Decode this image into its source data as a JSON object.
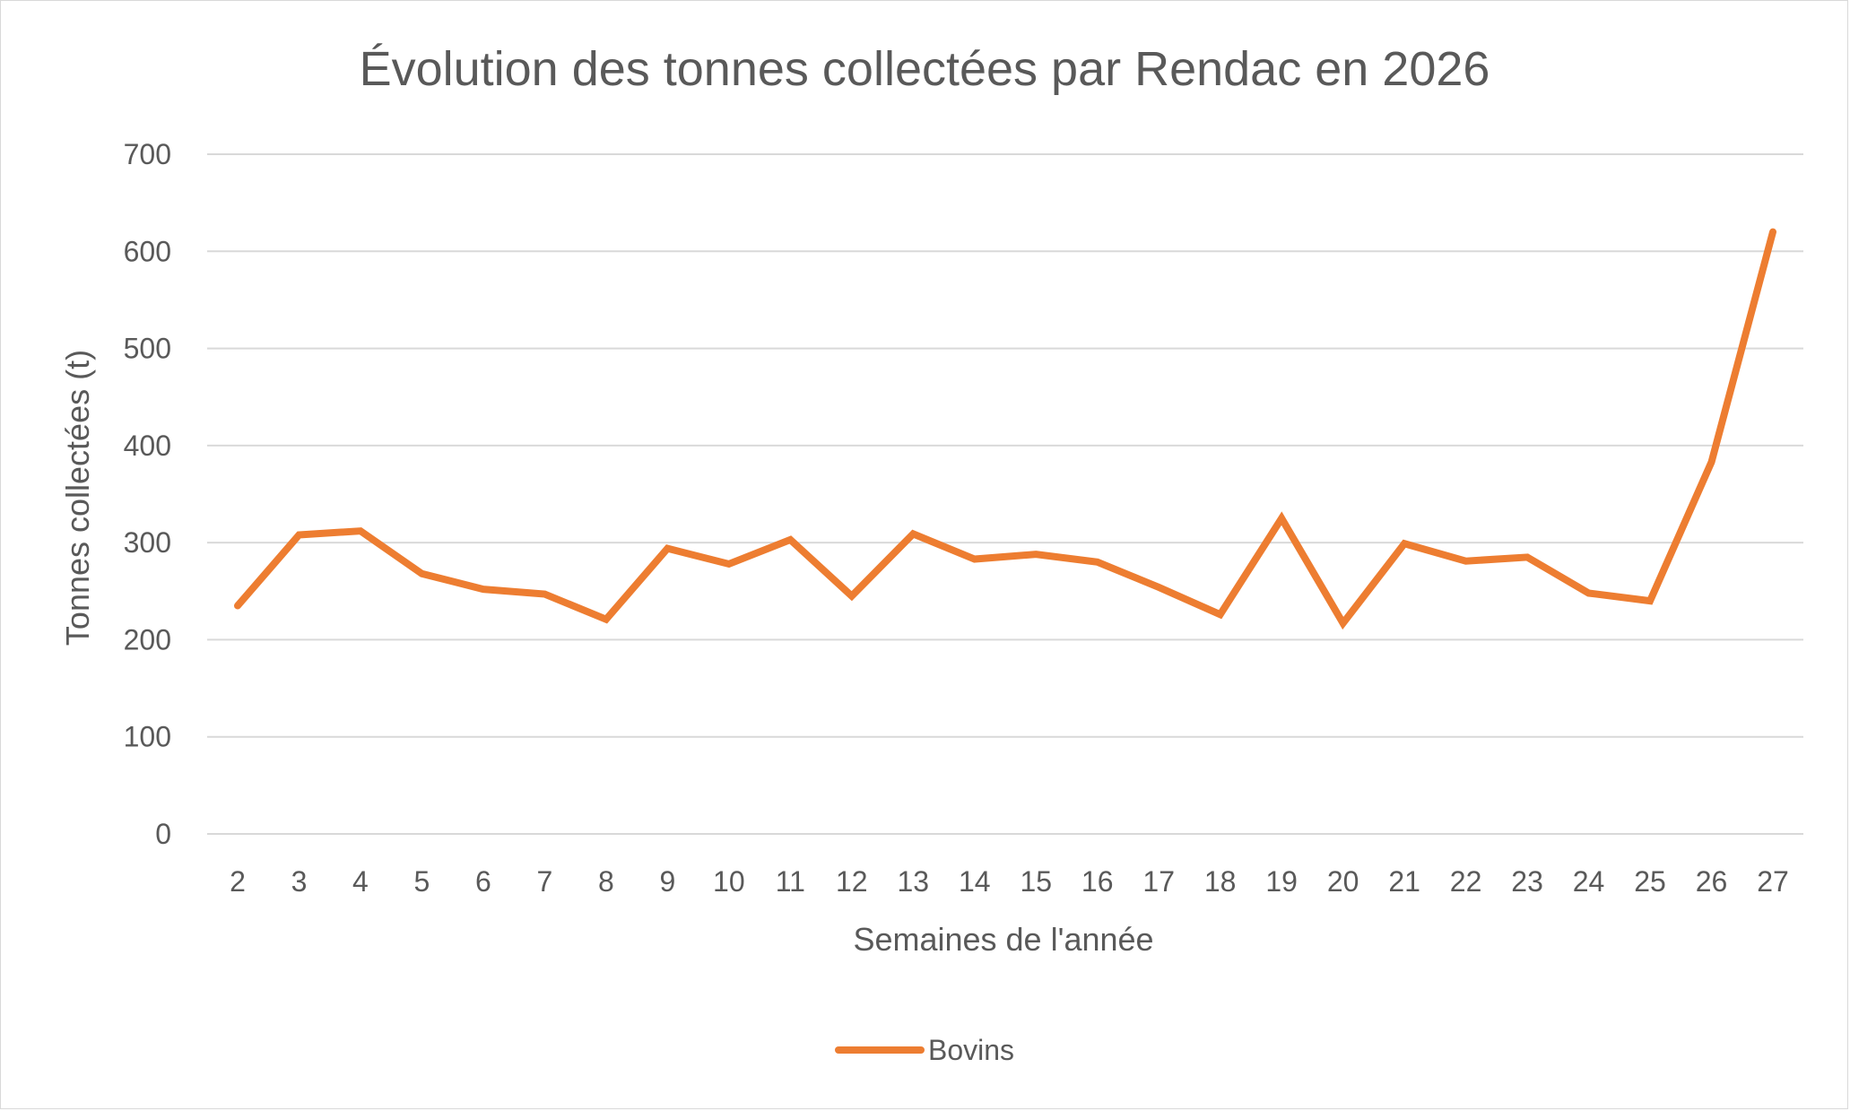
{
  "chart_data": {
    "type": "line",
    "title": "Évolution des tonnes collectées par Rendac en 2026",
    "xlabel": "Semaines de l'année",
    "ylabel": "Tonnes collectées (t)",
    "x": [
      "2",
      "3",
      "4",
      "5",
      "6",
      "7",
      "8",
      "9",
      "10",
      "11",
      "12",
      "13",
      "14",
      "15",
      "16",
      "17",
      "18",
      "19",
      "20",
      "21",
      "22",
      "23",
      "24",
      "25",
      "26",
      "27"
    ],
    "yticks": [
      "0",
      "100",
      "200",
      "300",
      "400",
      "500",
      "600",
      "700"
    ],
    "ylim": [
      0,
      700
    ],
    "grid": true,
    "legend_position": "bottom",
    "series": [
      {
        "name": "Bovins",
        "color": "#ED7D31",
        "values": [
          235,
          308,
          312,
          268,
          252,
          247,
          221,
          294,
          278,
          303,
          245,
          309,
          283,
          288,
          280,
          254,
          226,
          325,
          217,
          299,
          281,
          285,
          248,
          240,
          383,
          620
        ]
      }
    ]
  }
}
